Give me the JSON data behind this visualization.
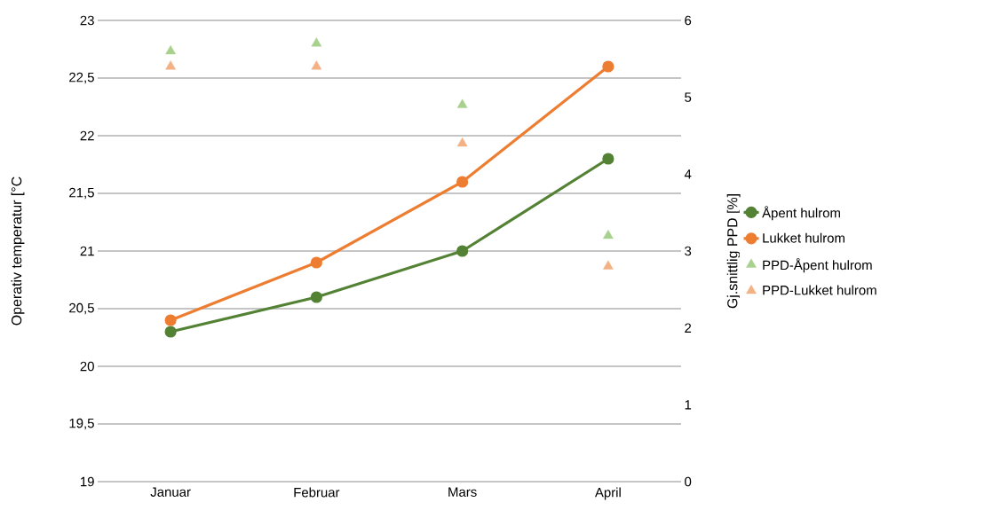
{
  "chart_data": {
    "type": "line",
    "xlabel": null,
    "ylabel": "Operativ temperatur [°C",
    "y2label": "Gj.snittlig PPD [%]",
    "categories": [
      "Januar",
      "Februar",
      "Mars",
      "April"
    ],
    "ylim": [
      19,
      23
    ],
    "yticks": [
      19,
      {
        "value": 19.5,
        "label": "19,5"
      },
      20,
      {
        "value": 20.5,
        "label": "20,5"
      },
      21,
      {
        "value": 21.5,
        "label": "21,5"
      },
      22,
      {
        "value": 22.5,
        "label": "22,5"
      },
      23
    ],
    "y2lim": [
      0,
      6
    ],
    "y2ticks": [
      0,
      1,
      2,
      3,
      4,
      5,
      6
    ],
    "grid": "y",
    "legend": "right",
    "series": [
      {
        "name": "Åpent hulrom",
        "color": "#548235",
        "marker": "circle",
        "values": [
          20.3,
          20.6,
          21.0,
          21.8
        ]
      },
      {
        "name": "Lukket hulrom",
        "color": "#ED7D31",
        "marker": "circle",
        "values": [
          20.4,
          20.9,
          21.6,
          22.6
        ]
      },
      {
        "name": "PPD-Åpent hulrom",
        "type": "scatter",
        "axis": "y2",
        "color": "#A9D18E",
        "marker": "triangle",
        "values": [
          5.6,
          5.7,
          4.9,
          3.2
        ]
      },
      {
        "name": "PPD-Lukket hulrom",
        "type": "scatter",
        "axis": "y2",
        "color": "#F4B183",
        "marker": "triangle",
        "values": [
          5.4,
          5.4,
          4.4,
          2.8
        ]
      }
    ]
  }
}
